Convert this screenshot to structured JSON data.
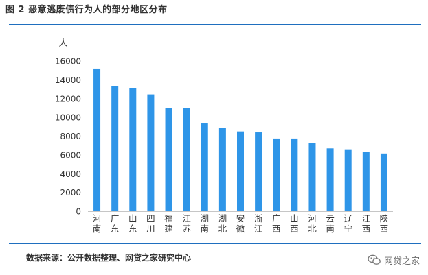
{
  "figure": {
    "title": "图 2   恶意逃废债行为人的部分地区分布",
    "source": "数据来源：公开数据整理、网贷之家研究中心",
    "watermark": "网贷之家",
    "watermark_icon": "wechat-icon"
  },
  "colors": {
    "bar": "#2e95e8",
    "rule": "#1f6fbf",
    "axis": "#8c8c8c",
    "text": "#333333"
  },
  "chart_data": {
    "type": "bar",
    "title": "",
    "ylabel": "人",
    "xlabel": "",
    "ylim": [
      0,
      16000
    ],
    "yticks": [
      0,
      2000,
      4000,
      6000,
      8000,
      10000,
      12000,
      14000,
      16000
    ],
    "grid": false,
    "legend": "none",
    "categories": [
      "河南",
      "广东",
      "山东",
      "四川",
      "福建",
      "江苏",
      "湖南",
      "湖北",
      "安徽",
      "浙江",
      "广西",
      "山西",
      "河北",
      "云南",
      "辽宁",
      "江西",
      "陕西"
    ],
    "values": [
      15200,
      13300,
      13100,
      12450,
      11000,
      11000,
      9350,
      8900,
      8500,
      8400,
      7750,
      7750,
      7300,
      6700,
      6600,
      6350,
      6150
    ]
  }
}
